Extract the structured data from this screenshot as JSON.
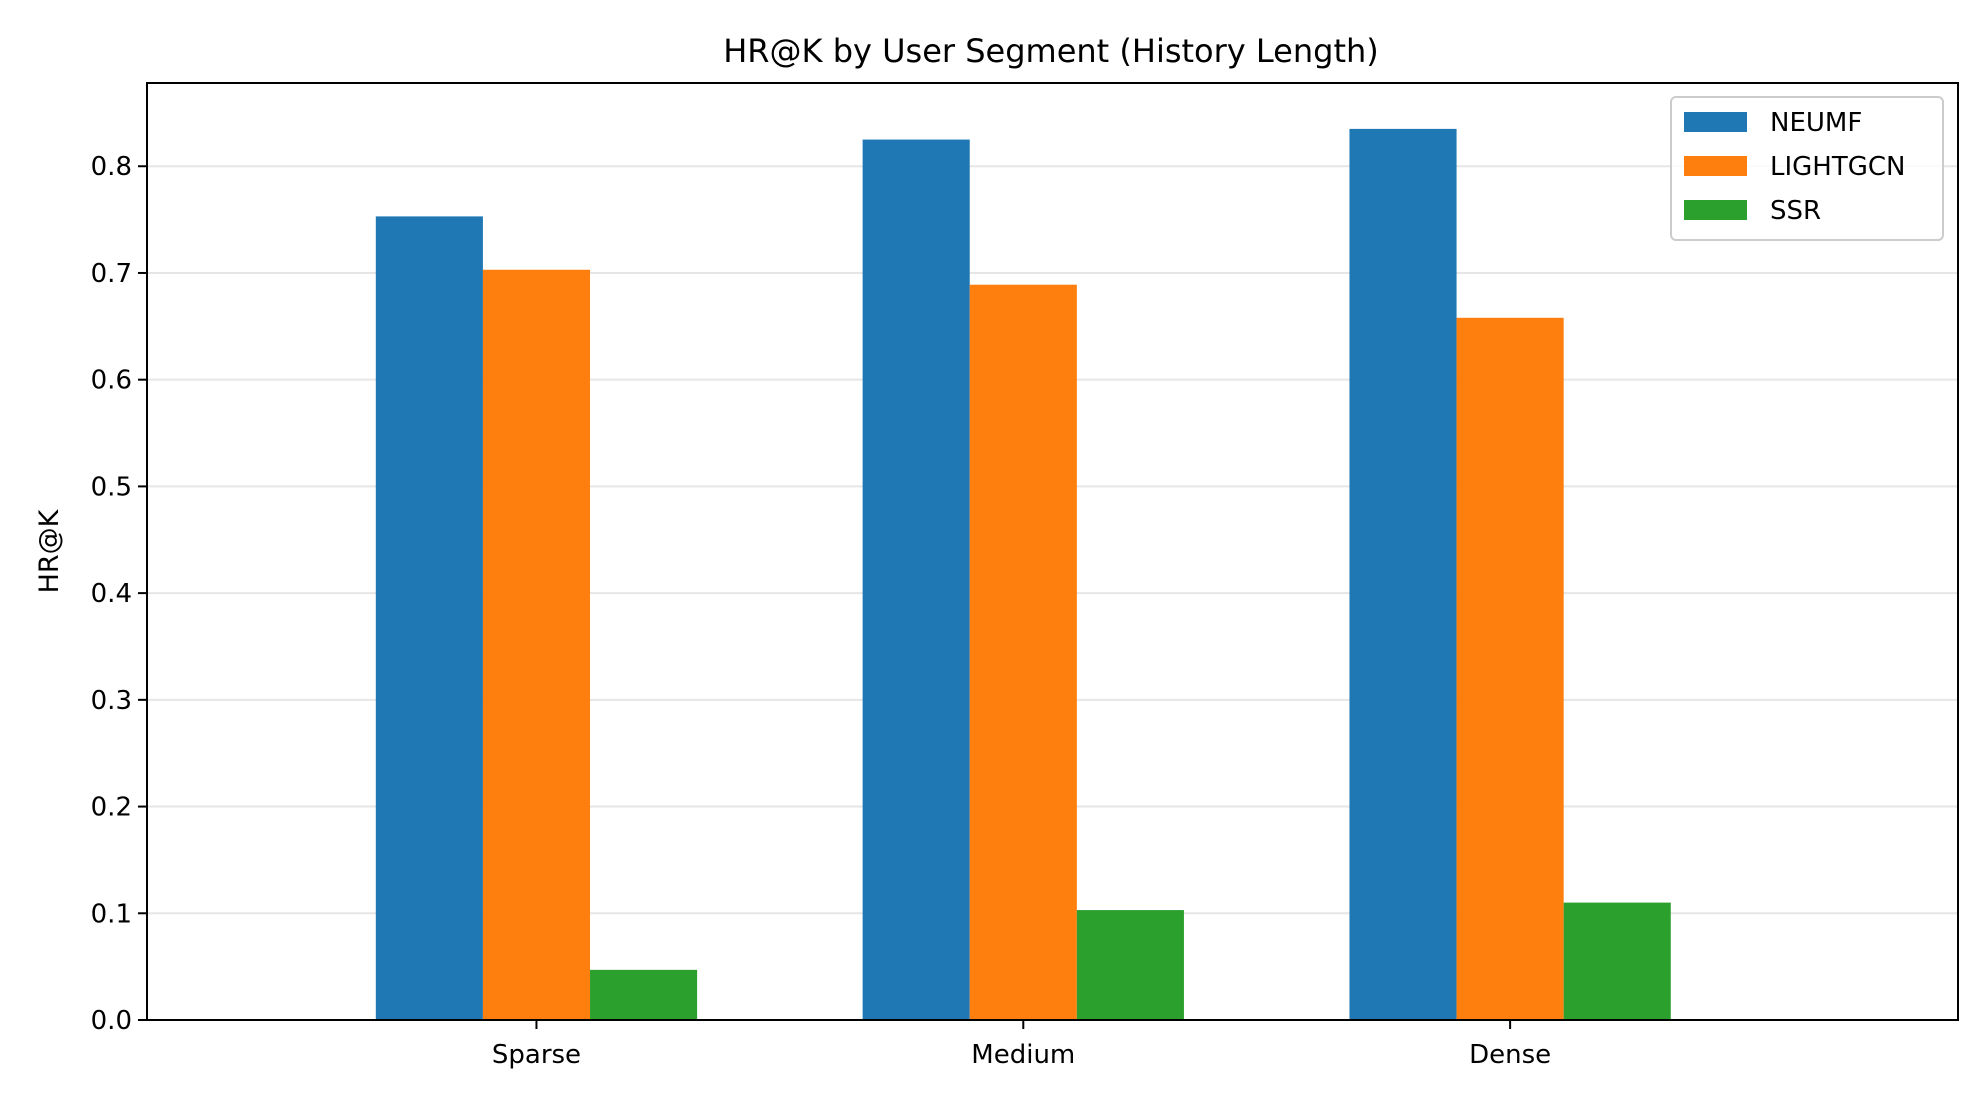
{
  "chart_data": {
    "type": "bar",
    "title": "HR@K by User Segment (History Length)",
    "xlabel": "",
    "ylabel": "HR@K",
    "categories": [
      "Sparse",
      "Medium",
      "Dense"
    ],
    "series": [
      {
        "name": "NEUMF",
        "color": "#1f77b4",
        "values": [
          0.753,
          0.825,
          0.835
        ]
      },
      {
        "name": "LIGHTGCN",
        "color": "#ff7f0e",
        "values": [
          0.703,
          0.689,
          0.658
        ]
      },
      {
        "name": "SSR",
        "color": "#2ca02c",
        "values": [
          0.047,
          0.103,
          0.11
        ]
      }
    ],
    "ylim": [
      0,
      0.878
    ],
    "yticks": [
      "0.0",
      "0.1",
      "0.2",
      "0.3",
      "0.4",
      "0.5",
      "0.6",
      "0.7",
      "0.8"
    ],
    "grid": "y",
    "legend": "top-right"
  }
}
